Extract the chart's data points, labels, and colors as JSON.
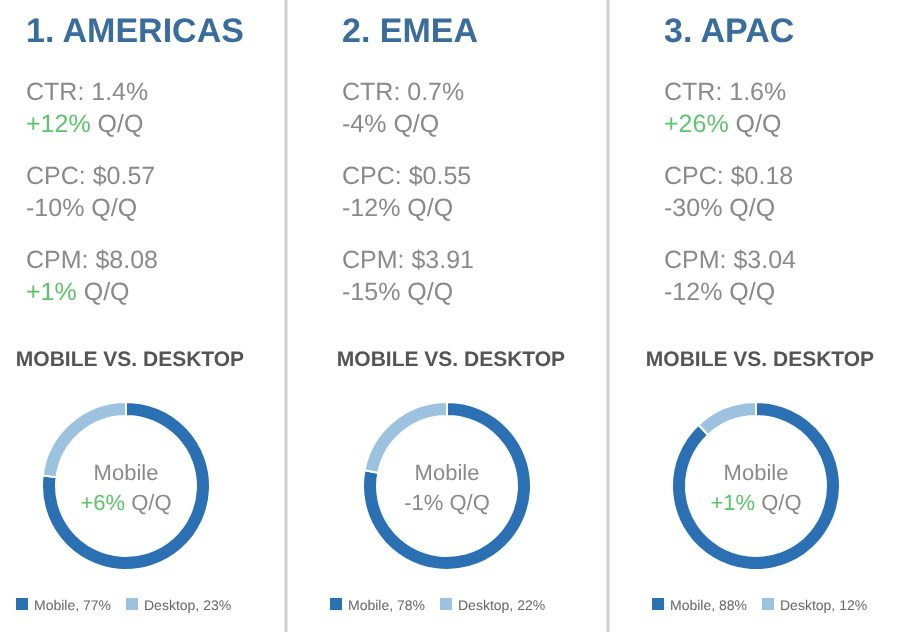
{
  "chart_data": [
    {
      "type": "donut",
      "title": "1. AMERICAS",
      "subtitle": "MOBILE VS. DESKTOP",
      "categories": [
        "Mobile, 77%",
        "Desktop, 23%"
      ],
      "values": [
        77,
        23
      ],
      "colors": [
        "#2a70b3",
        "#9cc2e0"
      ],
      "legend": "bottom",
      "annotations": [
        "CTR: 1.4%",
        "+12% Q/Q",
        "CPC: $0.57",
        "-10% Q/Q",
        "CPM: $8.08",
        "+1% Q/Q",
        "Mobile",
        "+6% Q/Q"
      ]
    },
    {
      "type": "donut",
      "title": "2. EMEA",
      "subtitle": "MOBILE VS. DESKTOP",
      "categories": [
        "Mobile, 78%",
        "Desktop, 22%"
      ],
      "values": [
        78,
        22
      ],
      "colors": [
        "#2a70b3",
        "#9cc2e0"
      ],
      "legend": "bottom",
      "annotations": [
        "CTR: 0.7%",
        "-4% Q/Q",
        "CPC: $0.55",
        "-12% Q/Q",
        "CPM: $3.91",
        "-15% Q/Q",
        "Mobile",
        "-1% Q/Q"
      ]
    },
    {
      "type": "donut",
      "title": "3. APAC",
      "subtitle": "MOBILE VS. DESKTOP",
      "categories": [
        "Mobile, 88%",
        "Desktop, 12%"
      ],
      "values": [
        88,
        12
      ],
      "colors": [
        "#2a70b3",
        "#9cc2e0"
      ],
      "legend": "bottom",
      "annotations": [
        "CTR: 1.6%",
        "+26% Q/Q",
        "CPC: $0.18",
        "-30% Q/Q",
        "CPM: $3.04",
        "-12% Q/Q",
        "Mobile",
        "+1% Q/Q"
      ]
    }
  ]
}
